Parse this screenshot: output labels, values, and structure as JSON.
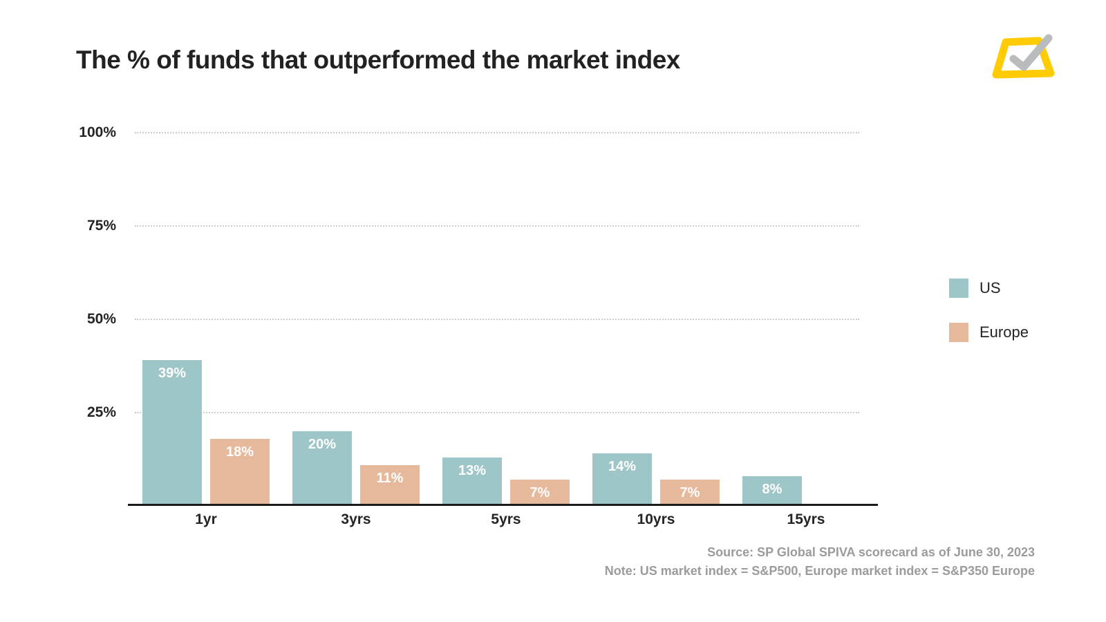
{
  "page": {
    "title": "The % of funds that outperformed the market index",
    "source_line1": "Source: SP Global SPIVA scorecard as of June 30, 2023",
    "source_line2": "Note: US market index = S&P500, Europe market index = S&P350 Europe"
  },
  "colors": {
    "us": "#9EC6C8",
    "europe": "#E6B99C",
    "title_text": "#222222",
    "axis_text": "#242424",
    "grid": "#cccccc",
    "axis_line": "#1a1a1a",
    "value_label": "#ffffff",
    "source_text": "#9b9b9b",
    "logo_yellow": "#FFCB05",
    "logo_check": "#B9BBBC"
  },
  "chart_data": {
    "type": "bar",
    "title": "The % of funds that outperformed the market index",
    "categories": [
      "1yr",
      "3yrs",
      "5yrs",
      "10yrs",
      "15yrs"
    ],
    "series": [
      {
        "name": "US",
        "color_key": "us",
        "values": [
          39,
          20,
          13,
          14,
          8
        ]
      },
      {
        "name": "Europe",
        "color_key": "europe",
        "values": [
          18,
          11,
          7,
          7,
          null
        ]
      }
    ],
    "value_label_suffix": "%",
    "xlabel": "",
    "ylabel": "",
    "ylim": [
      0,
      100
    ],
    "y_ticks": [
      25,
      50,
      75,
      100
    ],
    "y_tick_labels": [
      "25%",
      "50%",
      "75%",
      "100%"
    ],
    "grid": "horizontal-dotted",
    "legend_position": "right"
  },
  "legend": {
    "items": [
      {
        "label": "US",
        "color_key": "us"
      },
      {
        "label": "Europe",
        "color_key": "europe"
      }
    ]
  }
}
